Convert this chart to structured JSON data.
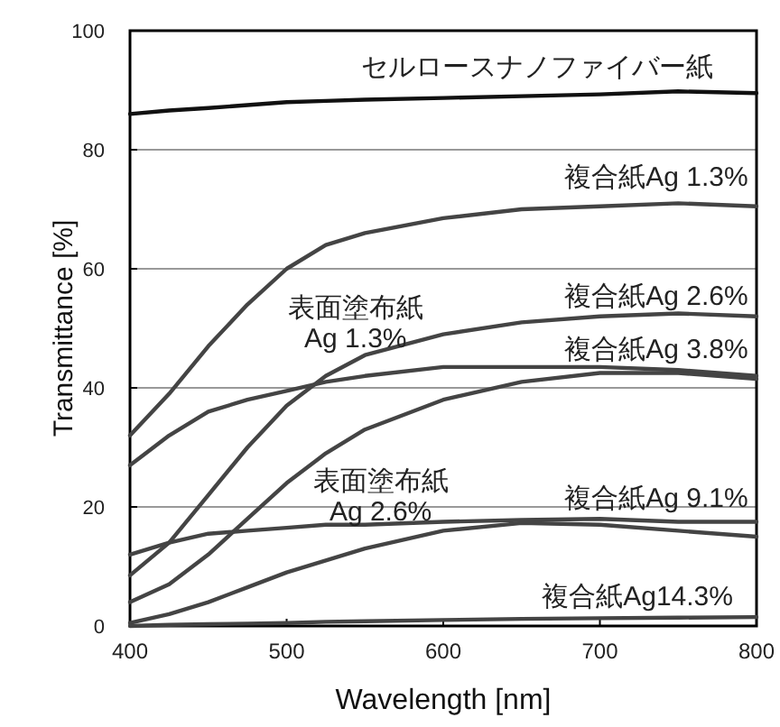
{
  "chart_data": {
    "type": "line",
    "xlabel": "Wavelength [nm]",
    "ylabel": "Transmittance  [%]",
    "xlim": [
      400,
      800
    ],
    "xticks": [
      400,
      500,
      600,
      700,
      800
    ],
    "ylim": [
      0,
      100
    ],
    "yticks": [
      0,
      20,
      40,
      60,
      80,
      100
    ],
    "grid": "y",
    "marker": "none",
    "line_style": "solid",
    "x": [
      400,
      425,
      450,
      475,
      500,
      525,
      550,
      600,
      650,
      700,
      750,
      800
    ],
    "series": [
      {
        "color": "#111111",
        "values": [
          86,
          86.6,
          87,
          87.5,
          88,
          88.2,
          88.4,
          88.7,
          89,
          89.3,
          89.8,
          89.5
        ]
      },
      {
        "color": "#444444",
        "values": [
          32,
          39,
          47,
          54,
          60,
          64,
          66,
          68.5,
          70,
          70.5,
          71,
          70.5
        ]
      },
      {
        "color": "#444444",
        "values": [
          8.5,
          14,
          22,
          30,
          37,
          42,
          45.5,
          49,
          51,
          52,
          52.5,
          52
        ]
      },
      {
        "color": "#444444",
        "values": [
          27,
          32,
          36,
          38,
          39.5,
          41,
          42,
          43.5,
          43.5,
          43.5,
          43,
          42
        ]
      },
      {
        "color": "#444444",
        "values": [
          4,
          7,
          12,
          18,
          24,
          29,
          33,
          38,
          41,
          42.5,
          42.5,
          41.5
        ]
      },
      {
        "color": "#444444",
        "values": [
          12,
          14,
          15.5,
          16,
          16.5,
          17,
          17,
          17.5,
          17.8,
          18,
          17.5,
          17.5
        ]
      },
      {
        "color": "#444444",
        "values": [
          0.5,
          2,
          4,
          6.5,
          9,
          11,
          13,
          16,
          17.3,
          17,
          16,
          15
        ]
      },
      {
        "color": "#444444",
        "values": [
          0,
          0.2,
          0.3,
          0.4,
          0.5,
          0.7,
          0.8,
          1,
          1.2,
          1.3,
          1.4,
          1.5
        ]
      }
    ],
    "annotations": [
      "セルロースナノファイバー紙",
      "複合紙Ag 1.3%",
      "複合紙Ag 2.6%",
      "複合紙Ag 3.8%",
      "複合紙Ag 9.1%",
      "複合紙Ag14.3%",
      "表面塗布紙\nAg 1.3%",
      "表面塗布紙\nAg 2.6%"
    ]
  }
}
